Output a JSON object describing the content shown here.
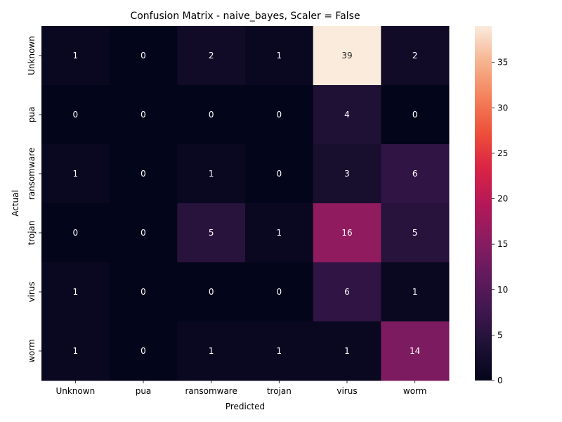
{
  "chart_data": {
    "type": "heatmap",
    "title": "Confusion Matrix - naive_bayes, Scaler = False",
    "xlabel": "Predicted",
    "ylabel": "Actual",
    "x_categories": [
      "Unknown",
      "pua",
      "ransomware",
      "trojan",
      "virus",
      "worm"
    ],
    "y_categories": [
      "Unknown",
      "pua",
      "ransomware",
      "trojan",
      "virus",
      "worm"
    ],
    "values": [
      [
        1,
        0,
        2,
        1,
        39,
        2
      ],
      [
        0,
        0,
        0,
        0,
        4,
        0
      ],
      [
        1,
        0,
        1,
        0,
        3,
        6
      ],
      [
        0,
        0,
        5,
        1,
        16,
        5
      ],
      [
        1,
        0,
        0,
        0,
        6,
        1
      ],
      [
        1,
        0,
        1,
        1,
        1,
        14
      ]
    ],
    "colorbar": {
      "min": 0,
      "max": 39,
      "ticks": [
        0,
        5,
        10,
        15,
        20,
        25,
        30,
        35
      ]
    },
    "colormap": "rocket"
  }
}
